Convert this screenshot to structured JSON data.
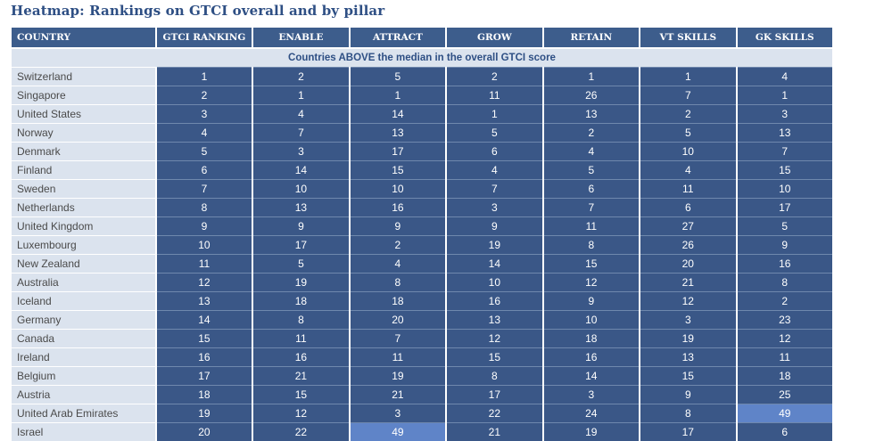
{
  "title": "Heatmap: Rankings on GTCI overall and by pillar",
  "chart_data": {
    "type": "heatmap",
    "title": "Heatmap: Rankings on GTCI overall and by pillar",
    "columns": [
      "COUNTRY",
      "GTCI RANKING",
      "ENABLE",
      "ATTRACT",
      "GROW",
      "RETAIN",
      "VT SKILLS",
      "GK SKILLS"
    ],
    "band_label": "Countries ABOVE the median in the overall GTCI score",
    "rows": [
      {
        "country": "Switzerland",
        "values": [
          1,
          2,
          5,
          2,
          1,
          1,
          4
        ]
      },
      {
        "country": "Singapore",
        "values": [
          2,
          1,
          1,
          11,
          26,
          7,
          1
        ]
      },
      {
        "country": "United States",
        "values": [
          3,
          4,
          14,
          1,
          13,
          2,
          3
        ]
      },
      {
        "country": "Norway",
        "values": [
          4,
          7,
          13,
          5,
          2,
          5,
          13
        ]
      },
      {
        "country": "Denmark",
        "values": [
          5,
          3,
          17,
          6,
          4,
          10,
          7
        ]
      },
      {
        "country": "Finland",
        "values": [
          6,
          14,
          15,
          4,
          5,
          4,
          15
        ]
      },
      {
        "country": "Sweden",
        "values": [
          7,
          10,
          10,
          7,
          6,
          11,
          10
        ]
      },
      {
        "country": "Netherlands",
        "values": [
          8,
          13,
          16,
          3,
          7,
          6,
          17
        ]
      },
      {
        "country": "United Kingdom",
        "values": [
          9,
          9,
          9,
          9,
          11,
          27,
          5
        ]
      },
      {
        "country": "Luxembourg",
        "values": [
          10,
          17,
          2,
          19,
          8,
          26,
          9
        ]
      },
      {
        "country": "New Zealand",
        "values": [
          11,
          5,
          4,
          14,
          15,
          20,
          16
        ]
      },
      {
        "country": "Australia",
        "values": [
          12,
          19,
          8,
          10,
          12,
          21,
          8
        ]
      },
      {
        "country": "Iceland",
        "values": [
          13,
          18,
          18,
          16,
          9,
          12,
          2
        ]
      },
      {
        "country": "Germany",
        "values": [
          14,
          8,
          20,
          13,
          10,
          3,
          23
        ]
      },
      {
        "country": "Canada",
        "values": [
          15,
          11,
          7,
          12,
          18,
          19,
          12
        ]
      },
      {
        "country": "Ireland",
        "values": [
          16,
          16,
          11,
          15,
          16,
          13,
          11
        ]
      },
      {
        "country": "Belgium",
        "values": [
          17,
          21,
          19,
          8,
          14,
          15,
          18
        ]
      },
      {
        "country": "Austria",
        "values": [
          18,
          15,
          21,
          17,
          3,
          9,
          25
        ]
      },
      {
        "country": "United Arab Emirates",
        "values": [
          19,
          12,
          3,
          22,
          24,
          8,
          49
        ]
      },
      {
        "country": "Israel",
        "values": [
          20,
          22,
          49,
          21,
          19,
          17,
          6
        ]
      }
    ],
    "colors": {
      "header": "#3d5d8c",
      "cell": "#3a5787",
      "cell_high": "#5f84c8",
      "country_bg": "#dbe3ee",
      "band_bg": "#dbe3ee",
      "title": "#2e4f84"
    }
  }
}
